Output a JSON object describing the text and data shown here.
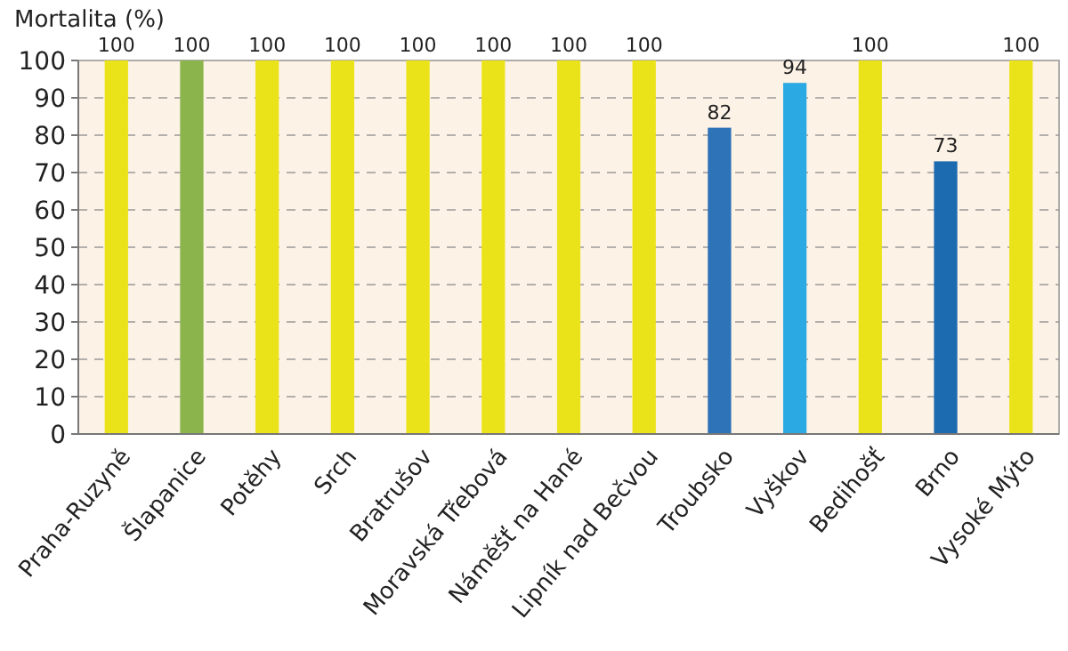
{
  "chart_data": {
    "type": "bar",
    "ylabel": "Mortalita (%)",
    "categories": [
      "Praha-Ruzyně",
      "Šlapanice",
      "Potěhy",
      "Srch",
      "Bratrušov",
      "Moravská Třebová",
      "Náměšť na Hané",
      "Lipník nad Bečvou",
      "Troubsko",
      "Vyškov",
      "Bedihošť",
      "Brno",
      "Vysoké Mýto"
    ],
    "values": [
      100,
      100,
      100,
      100,
      100,
      100,
      100,
      100,
      82,
      94,
      100,
      73,
      100
    ],
    "colors": [
      "#ebe31a",
      "#8cb44c",
      "#ebe31a",
      "#ebe31a",
      "#ebe31a",
      "#ebe31a",
      "#ebe31a",
      "#ebe31a",
      "#2e72b8",
      "#2aa9e3",
      "#ebe31a",
      "#1c6bb0",
      "#ebe31a"
    ],
    "ylim": [
      0,
      100
    ],
    "yticks": [
      0,
      10,
      20,
      30,
      40,
      50,
      60,
      70,
      80,
      90,
      100
    ],
    "grid": "y",
    "data_labels": true
  }
}
